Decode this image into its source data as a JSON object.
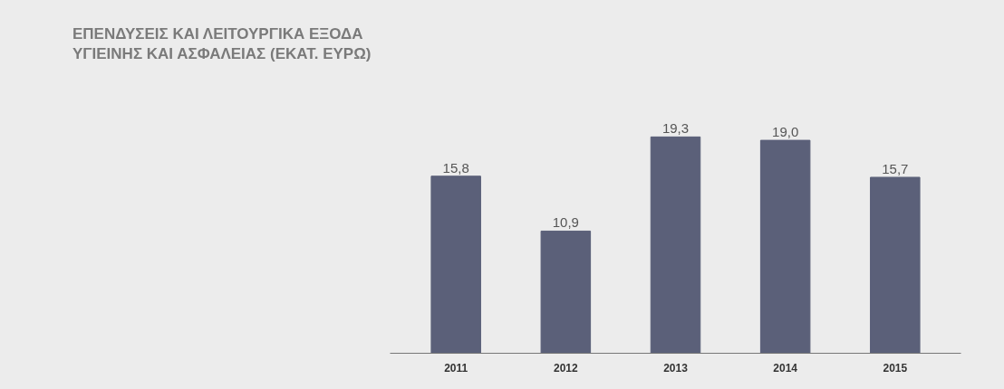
{
  "chart_data": {
    "type": "bar",
    "title": "ΕΠΕΝΔΥΣΕΙΣ ΚΑΙ ΛΕΙΤΟΥΡΓΙΚΑ ΕΞΟΔΑ\nΥΓΙΕΙΝΗΣ ΚΑΙ ΑΣΦΑΛΕΙΑΣ (ΕΚΑΤ. ΕΥΡΩ)",
    "categories": [
      "2011",
      "2012",
      "2013",
      "2014",
      "2015"
    ],
    "values": [
      15.8,
      10.9,
      19.3,
      19.0,
      15.7
    ],
    "value_labels": [
      "15,8",
      "10,9",
      "19,3",
      "19,0",
      "15,7"
    ],
    "color": "#5b6079",
    "tick_labels": "x"
  }
}
